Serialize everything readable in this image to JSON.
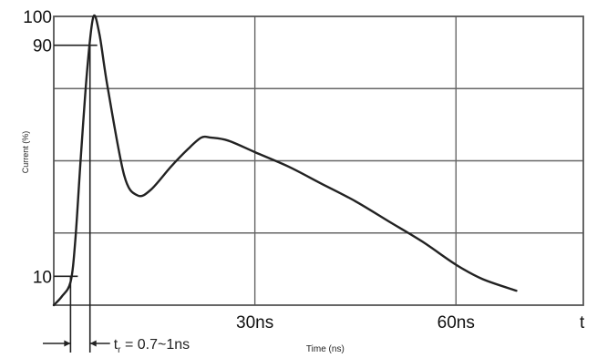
{
  "chart_data": {
    "type": "line",
    "title": "",
    "xlabel": "Time (ns)",
    "ylabel": "Current (%)",
    "x_axis_symbol": "t",
    "x_ticks": [
      {
        "value": 30,
        "label": "30ns"
      },
      {
        "value": 60,
        "label": "60ns"
      }
    ],
    "y_ticks": [
      {
        "value": 10,
        "label": "10"
      },
      {
        "value": 90,
        "label": "90"
      },
      {
        "value": 100,
        "label": "100"
      }
    ],
    "xlim": [
      0,
      79
    ],
    "ylim": [
      0,
      100
    ],
    "grid": true,
    "rise_time_annotation": {
      "label_main": "t",
      "label_sub": "r",
      "label_rest": " = 0.7~1ns",
      "x_start": 2.5,
      "x_end": 5.4
    },
    "series": [
      {
        "x": [
          0,
          1.2,
          2.5,
          3.2,
          4.0,
          5.0,
          5.9,
          6.8,
          8.0,
          10.5,
          12.5,
          14.5,
          17.5,
          20.0,
          22.0,
          23.5,
          26.0,
          30.0,
          35.0,
          40.0,
          45.0,
          50.0,
          55.0,
          60.0,
          64.0,
          69.0
        ],
        "y": [
          0,
          3,
          8,
          22,
          50,
          82,
          99.8,
          94,
          76,
          45,
          38,
          40,
          48,
          54,
          58,
          58,
          57,
          53,
          48,
          42,
          36,
          29,
          22,
          14,
          9,
          5
        ]
      }
    ]
  }
}
